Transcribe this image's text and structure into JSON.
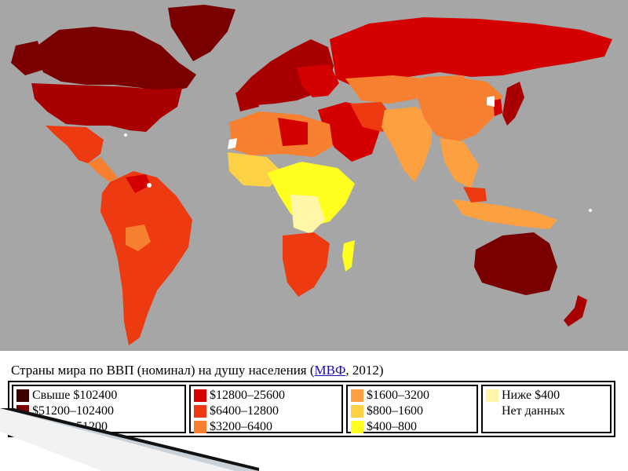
{
  "caption": {
    "prefix": "Страны мира по ВВП (номинал) на душу населения (",
    "link": "МВФ",
    "suffix": ", 2012)"
  },
  "legend": [
    {
      "label": "Свыше $102400",
      "color": "#3b0000"
    },
    {
      "label": "$51200–102400",
      "color": "#7a0000"
    },
    {
      "label": "$25600–51200",
      "color": "#a80000"
    },
    {
      "label": "$12800–25600",
      "color": "#d40000"
    },
    {
      "label": "$6400–12800",
      "color": "#ee3a10"
    },
    {
      "label": "$3200–6400",
      "color": "#f77f30"
    },
    {
      "label": "$1600–3200",
      "color": "#fca040"
    },
    {
      "label": "$800–1600",
      "color": "#fdd145"
    },
    {
      "label": "$400–800",
      "color": "#ffff20"
    },
    {
      "label": "Ниже $400",
      "color": "#fff6a8"
    },
    {
      "label": "Нет данных",
      "color": "#ffffff"
    }
  ],
  "colors": {
    "ocean": "#a6a6a6",
    "no_data": "#ffffff"
  }
}
